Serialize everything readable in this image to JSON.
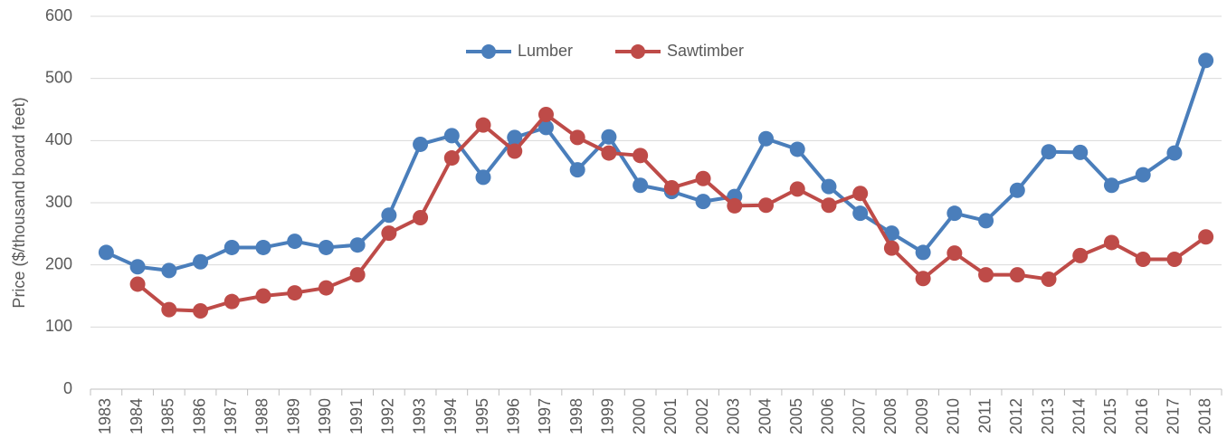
{
  "chart_data": {
    "type": "line",
    "ylabel": "Price ($/thousand board feet)",
    "categories": [
      "1983",
      "1984",
      "1985",
      "1986",
      "1987",
      "1988",
      "1989",
      "1990",
      "1991",
      "1992",
      "1993",
      "1994",
      "1995",
      "1996",
      "1997",
      "1998",
      "1999",
      "2000",
      "2001",
      "2002",
      "2003",
      "2004",
      "2005",
      "2006",
      "2007",
      "2008",
      "2009",
      "2010",
      "2011",
      "2012",
      "2013",
      "2014",
      "2015",
      "2016",
      "2017",
      "2018"
    ],
    "series": [
      {
        "name": "Lumber",
        "color": "#4a7ebb",
        "values": [
          220,
          197,
          191,
          205,
          228,
          228,
          238,
          228,
          232,
          280,
          394,
          408,
          341,
          405,
          421,
          353,
          406,
          328,
          318,
          302,
          310,
          403,
          386,
          326,
          283,
          251,
          220,
          283,
          271,
          320,
          382,
          381,
          328,
          345,
          380,
          529
        ]
      },
      {
        "name": "Sawtimber",
        "color": "#be4b48",
        "values": [
          null,
          169,
          128,
          126,
          141,
          150,
          155,
          163,
          184,
          251,
          276,
          372,
          425,
          383,
          442,
          405,
          380,
          376,
          324,
          339,
          295,
          296,
          322,
          296,
          315,
          227,
          178,
          219,
          184,
          184,
          177,
          215,
          236,
          209,
          209,
          245
        ]
      }
    ],
    "ylim": [
      0,
      600
    ],
    "yticks": [
      0,
      100,
      200,
      300,
      400,
      500,
      600
    ],
    "grid": true,
    "legend": "top"
  }
}
